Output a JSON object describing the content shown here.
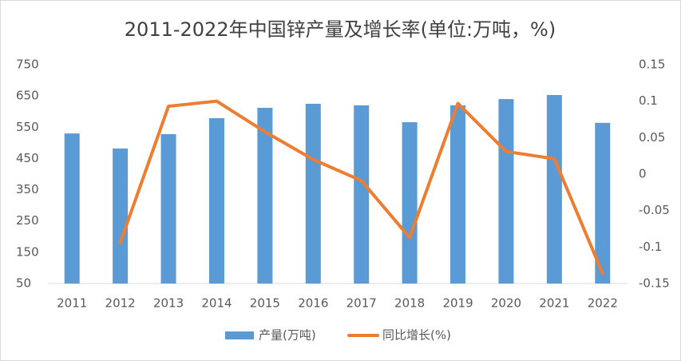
{
  "chart_data": {
    "type": "bar-line",
    "title": "2011-2022年中国锌产量及增长率(单位:万吨，%)",
    "categories": [
      "2011",
      "2012",
      "2013",
      "2014",
      "2015",
      "2016",
      "2017",
      "2018",
      "2019",
      "2020",
      "2021",
      "2022"
    ],
    "series": [
      {
        "name": "产量(万吨)",
        "type": "bar",
        "color": "#5b9bd5",
        "values": [
          530,
          482,
          528,
          579,
          612,
          625,
          620,
          566,
          620,
          640,
          653,
          564
        ]
      },
      {
        "name": "同比增长(%)",
        "type": "line",
        "axis": "y2",
        "color": "#ed7d31",
        "values": [
          null,
          -0.094,
          0.093,
          0.1,
          0.058,
          0.02,
          -0.009,
          -0.087,
          0.097,
          0.031,
          0.021,
          -0.136
        ]
      }
    ],
    "ylim": [
      50,
      750
    ],
    "yticks": [
      50,
      150,
      250,
      350,
      450,
      550,
      650,
      750
    ],
    "y2lim": [
      -0.15,
      0.15
    ],
    "y2ticks": [
      -0.15,
      -0.1,
      -0.05,
      0,
      0.05,
      0.1,
      0.15
    ],
    "grid": false,
    "legend": "bottom"
  }
}
